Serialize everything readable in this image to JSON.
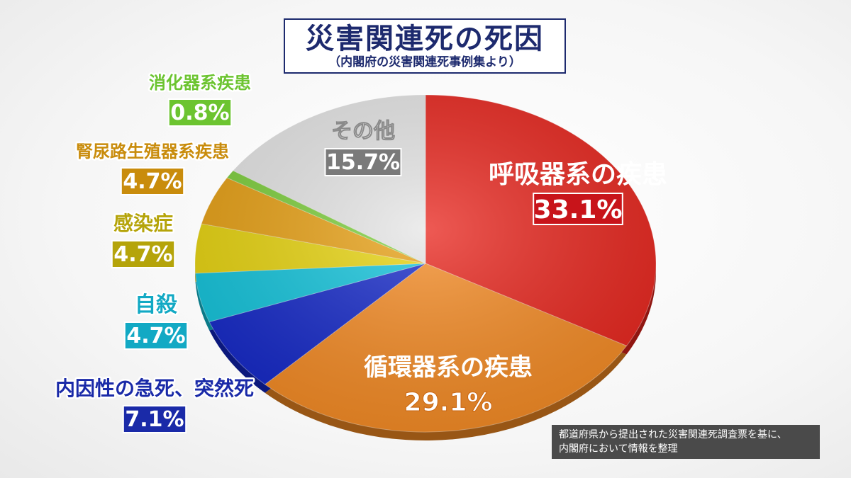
{
  "header": {
    "title": "災害関連死の死因",
    "subtitle": "（内閣府の災害関連死事例集より）"
  },
  "note": {
    "line1": "都道府県から提出された災害関連死調査票を基に、",
    "line2": "内閣府において情報を整理"
  },
  "chart_data": {
    "type": "pie",
    "title": "災害関連死の死因",
    "subtitle": "（内閣府の災害関連死事例集より）",
    "unit": "%",
    "slices": [
      {
        "label": "呼吸器系の疾患",
        "value": 33.1,
        "value_label": "33.1%",
        "color": "#e8231b",
        "text_color": "#d4141f"
      },
      {
        "label": "循環器系の疾患",
        "value": 29.1,
        "value_label": "29.1%",
        "color": "#f58a22",
        "text_color": "#ffffff"
      },
      {
        "label": "内因性の急死、突然死",
        "value": 7.1,
        "value_label": "7.1%",
        "color": "#1226c8",
        "text_color": "#1a2aa8"
      },
      {
        "label": "自殺",
        "value": 4.7,
        "value_label": "4.7%",
        "color": "#10c4dc",
        "text_color": "#12a9c4"
      },
      {
        "label": "感染症",
        "value": 4.7,
        "value_label": "4.7%",
        "color": "#e8d40c",
        "text_color": "#b5a40a"
      },
      {
        "label": "腎尿路生殖器系疾患",
        "value": 4.7,
        "value_label": "4.7%",
        "color": "#e8a012",
        "text_color": "#c98c0c"
      },
      {
        "label": "消化器系疾患",
        "value": 0.8,
        "value_label": "0.8%",
        "color": "#7ccf3a",
        "text_color": "#6cc430"
      },
      {
        "label": "その他",
        "value": 15.7,
        "value_label": "15.7%",
        "color": "#e6e6e6",
        "text_color": "#6e6e6e"
      }
    ],
    "legend": "none",
    "labels": "outside-left for small slices, inside for large slices"
  }
}
